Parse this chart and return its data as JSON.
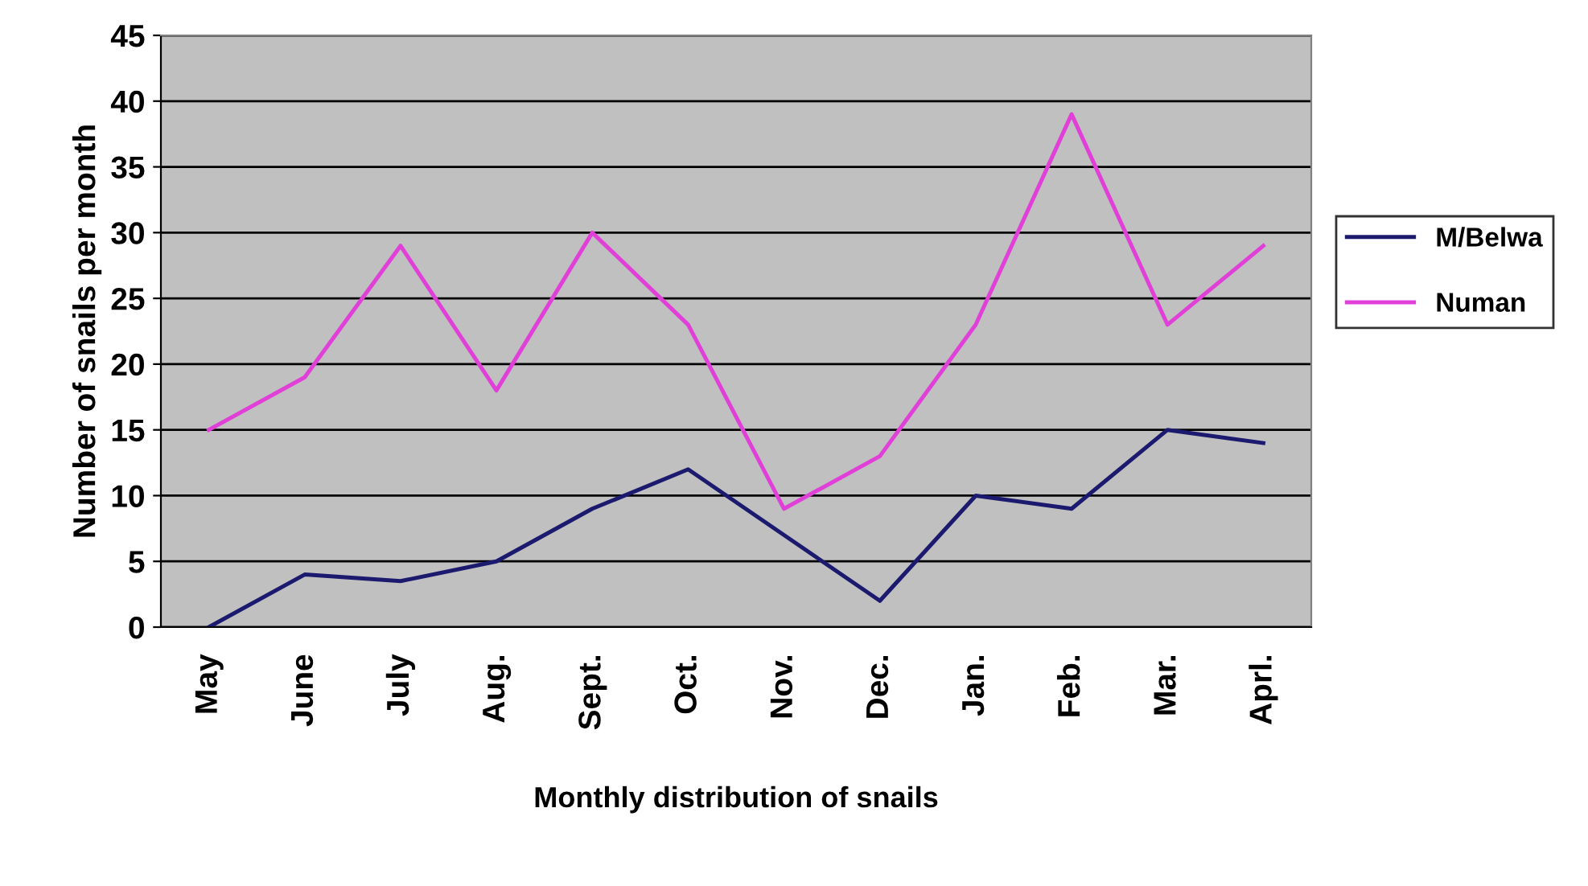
{
  "chart_data": {
    "type": "line",
    "xlabel": "Monthly distribution of snails",
    "ylabel": "Number of snails per month",
    "categories": [
      "May",
      "June",
      "July",
      "Aug.",
      "Sept.",
      "Oct.",
      "Nov.",
      "Dec.",
      "Jan.",
      "Feb.",
      "Mar.",
      "Aprl."
    ],
    "series": [
      {
        "name": "M/Belwa",
        "color": "#1c1a6e",
        "values": [
          0,
          4,
          3.5,
          5,
          9,
          12,
          7,
          2,
          10,
          9,
          15,
          14
        ]
      },
      {
        "name": "Numan",
        "color": "#e040d8",
        "values": [
          15,
          19,
          29,
          18,
          30,
          23,
          9,
          13,
          23,
          39,
          23,
          29
        ]
      }
    ],
    "ylim": [
      0,
      45
    ],
    "yticks": [
      0,
      5,
      10,
      15,
      20,
      25,
      30,
      35,
      40,
      45
    ],
    "grid": "y",
    "legend": "right",
    "marker": "none",
    "line_style": "solid"
  }
}
